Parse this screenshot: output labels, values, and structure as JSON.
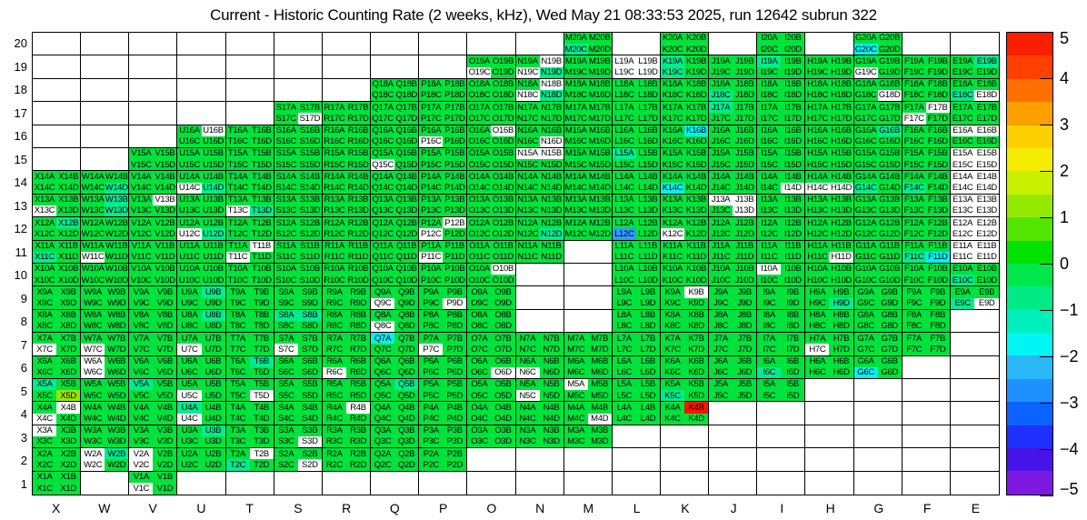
{
  "title": "Current - Historic Counting Rate (2 weeks, kHz), Wed May 21 08:33:53 2025, run 12642 subrun 322",
  "chart_data": {
    "type": "heatmap",
    "title": "Current - Historic Counting Rate (2 weeks, kHz), Wed May 21 08:33:53 2025, run 12642 subrun 322",
    "x_categories": [
      "X",
      "W",
      "V",
      "U",
      "T",
      "S",
      "R",
      "Q",
      "P",
      "O",
      "N",
      "M",
      "L",
      "K",
      "J",
      "I",
      "H",
      "G",
      "F",
      "E"
    ],
    "y_categories": [
      "20",
      "19",
      "18",
      "17",
      "16",
      "15",
      "14",
      "13",
      "12",
      "11",
      "10",
      "9",
      "8",
      "7",
      "6",
      "5",
      "4",
      "3",
      "2",
      "1"
    ],
    "quadrant_order": [
      "A",
      "B",
      "C",
      "D"
    ],
    "legend_position": "right",
    "colorbar_range": [
      -5,
      5
    ],
    "grid": "on",
    "color_classes": {
      "g": "#00e23c",
      "s": "#00ec8e",
      "c": "#00f2f2",
      "b": "#2f9bfb",
      "r": "#fb1400",
      "y": "#97e800",
      "w": "#ffffff"
    },
    "color_value_estimate_khz": {
      "g": 0.4,
      "s": -0.2,
      "c": -1.6,
      "b": -2.6,
      "r": 5.0,
      "y": 1.3,
      "w": null
    },
    "cells": {
      "M20": "ggsg",
      "K20": "gggg",
      "I20": "gggg",
      "G20": "ggcg",
      "O19": "ggwg",
      "N19": "gwws",
      "M19": "gggg",
      "L19": "wwww",
      "K19": "sgsg",
      "J19": "gggg",
      "I19": "sggg",
      "H19": "gggg",
      "G19": "ggwg",
      "F19": "gggg",
      "E19": "gsgg",
      "Q18": "gggg",
      "P18": "gggg",
      "O18": "gggg",
      "N18": "gwws",
      "M18": "gggg",
      "L18": "gggg",
      "K18": "gggg",
      "J18": "ggsg",
      "I18": "gggg",
      "H18": "gggg",
      "G18": "gggw",
      "F18": "gggg",
      "E18": "ggsw",
      "S17": "gggw",
      "R17": "gggg",
      "Q17": "gggg",
      "P17": "gggg",
      "O17": "gggg",
      "N17": "gggg",
      "M17": "gggg",
      "L17": "gggg",
      "K17": "gggg",
      "J17": "sggg",
      "I17": "gggg",
      "H17": "gggg",
      "G17": "gggg",
      "F17": "gwwg",
      "E17": "gggg",
      "U16": "gwgg",
      "T16": "gggg",
      "S16": "gggg",
      "R16": "gggg",
      "Q16": "gggg",
      "P16": "ggwg",
      "O16": "gwgg",
      "N16": "gggw",
      "M16": "gggg",
      "L16": "gggg",
      "K16": "gcgg",
      "J16": "gggg",
      "I16": "gggg",
      "H16": "gggg",
      "G16": "gsgg",
      "F16": "gggg",
      "E16": "wwgg",
      "V15": "gggg",
      "U15": "gggg",
      "T15": "gggg",
      "S15": "gggg",
      "R15": "gggg",
      "Q15": "ggwg",
      "P15": "gggg",
      "O15": "gggg",
      "N15": "wwgg",
      "M15": "gggg",
      "L15": "sggg",
      "K15": "gggg",
      "J15": "gggg",
      "I15": "gggg",
      "H15": "gggg",
      "G15": "gggg",
      "F15": "gggg",
      "E15": "wwww",
      "X14": "gggg",
      "W14": "gggs",
      "V14": "gggg",
      "U14": "ggws",
      "T14": "gggg",
      "S14": "gggg",
      "R14": "gggg",
      "Q14": "gggg",
      "P14": "gggg",
      "O14": "gggg",
      "N14": "gggg",
      "M14": "gggg",
      "L14": "gggg",
      "K14": "ggcg",
      "J14": "gggg",
      "I14": "gggw",
      "H14": "ggww",
      "G14": "ggsg",
      "F14": "ggsg",
      "E14": "wwww",
      "X13": "ggwg",
      "W13": "gsgs",
      "V13": "gwgg",
      "U13": "gggg",
      "T13": "ggws",
      "S13": "gggg",
      "R13": "gggg",
      "Q13": "gggg",
      "P13": "gggg",
      "O13": "gggg",
      "N13": "gggg",
      "M13": "gggg",
      "L13": "gggg",
      "K13": "gggg",
      "J13": "wwgw",
      "I13": "gggg",
      "H13": "gggg",
      "G13": "gggg",
      "F13": "gggg",
      "E13": "wwww",
      "X12": "gsgg",
      "W12": "gggg",
      "V12": "gggg",
      "U12": "ggws",
      "T12": "gggg",
      "S12": "gggg",
      "R12": "gggg",
      "Q12": "gggg",
      "P12": "gwwg",
      "O12": "gggg",
      "N12": "gggs",
      "M12": "gggg",
      "L12": "ggbg",
      "K12": "ggwg",
      "J12": "gggg",
      "I12": "gggg",
      "H12": "gggg",
      "G12": "gggg",
      "F12": "gggg",
      "E12": "wwww",
      "X11": "ggsg",
      "W11": "ggwg",
      "V11": "gggg",
      "U11": "gggg",
      "T11": "gwwg",
      "S11": "gggg",
      "R11": "gggg",
      "Q11": "gggg",
      "P11": "ggwg",
      "O11": "gggg",
      "N11": "gggg",
      "L11": "gggg",
      "K11": "gggg",
      "J11": "gggg",
      "I11": "gggg",
      "H11": "gggw",
      "G11": "gggg",
      "F11": "ggsc",
      "E11": "wwww",
      "X10": "gggg",
      "W10": "gggg",
      "V10": "gggg",
      "U10": "gggg",
      "T10": "gggg",
      "S10": "gggg",
      "R10": "gggg",
      "Q10": "gggg",
      "P10": "gggg",
      "O10": "gwgg",
      "L10": "gggg",
      "K10": "gggg",
      "J10": "gggg",
      "I10": "wggg",
      "H10": "gggg",
      "G10": "gggg",
      "F10": "gggg",
      "E10": "ggsg",
      "X9": "gggg",
      "W9": "gggg",
      "V9": "gggg",
      "U9": "gsgg",
      "T9": "gggg",
      "S9": "gggg",
      "R9": "gggg",
      "Q9": "ggwg",
      "P9": "gggw",
      "O9": "gggg",
      "L9": "gggg",
      "K9": "gwgg",
      "J9": "gggg",
      "I9": "gggg",
      "H9": "gggs",
      "G9": "gggg",
      "F9": "gggg",
      "E9": "ggsw",
      "X8": "gggg",
      "W8": "gggg",
      "V8": "gggg",
      "U8": "gsgg",
      "T8": "gggg",
      "S8": "ssgg",
      "R8": "gggg",
      "Q8": "ggwg",
      "P8": "gggg",
      "O8": "gggg",
      "L8": "gggg",
      "K8": "gggg",
      "J8": "gggg",
      "I8": "gggg",
      "H8": "gggg",
      "G8": "gggg",
      "F8": "gggg",
      "X7": "ggwg",
      "W7": "ggwg",
      "V7": "gggg",
      "U7": "ggwg",
      "T7": "gggg",
      "S7": "ggwg",
      "R7": "gggg",
      "Q7": "cggg",
      "P7": "ggwg",
      "O7": "gggg",
      "N7": "gggg",
      "M7": "gggg",
      "L7": "gggg",
      "K7": "gggg",
      "J7": "gggg",
      "I7": "gggg",
      "H7": "ggwg",
      "G7": "gggg",
      "F7": "gggg",
      "X6": "gggg",
      "W6": "wgwg",
      "V6": "gggg",
      "U6": "gggg",
      "T6": "gsgg",
      "S6": "gggg",
      "R6": "ggwg",
      "Q6": "gggg",
      "P6": "gggg",
      "O6": "gggw",
      "N6": "ggwg",
      "M6": "gggg",
      "L6": "gggg",
      "K6": "gggg",
      "J6": "gggg",
      "I6": "ggsg",
      "H6": "gggg",
      "G6": "ggcg",
      "X5": "sggy",
      "W5": "gggg",
      "V5": "sggg",
      "U5": "ggwg",
      "T5": "gggw",
      "S5": "gggg",
      "R5": "gggg",
      "Q5": "gsgg",
      "P5": "gggg",
      "O5": "gggg",
      "N5": "ggwg",
      "M5": "wggg",
      "L5": "gggg",
      "K5": "ggsg",
      "J5": "gggg",
      "I5": "gggg",
      "X4": "gwwg",
      "W4": "gggg",
      "V4": "gggg",
      "U4": "sgwg",
      "T4": "gggg",
      "S4": "gggg",
      "R4": "gwgg",
      "Q4": "gggg",
      "P4": "gggg",
      "O4": "gggg",
      "N4": "gggg",
      "M4": "gggw",
      "L4": "gggg",
      "K4": "grgg",
      "X3": "wggg",
      "W3": "gggg",
      "V3": "gggg",
      "U3": "gsgg",
      "T3": "gggg",
      "S3": "gggw",
      "R3": "gggg",
      "Q3": "gggg",
      "P3": "gggg",
      "O3": "gggg",
      "N3": "gggg",
      "M3": "gggg",
      "X2": "gggg",
      "W2": "wswg",
      "V2": "wgwg",
      "U2": "gggg",
      "T2": "gwsg",
      "S2": "gggw",
      "R2": "gggg",
      "Q2": "gggg",
      "P2": "gggg",
      "X1": "gggg",
      "V1": "ggwg"
    },
    "colorbar": {
      "tick_labels": [
        "5",
        "4",
        "3",
        "2",
        "1",
        "0",
        "−1",
        "−2",
        "−3",
        "−4",
        "−5"
      ],
      "bands_top_to_bottom": [
        "#fa1e00",
        "#ff4000",
        "#ff7000",
        "#ffa000",
        "#ffd000",
        "#f5ec00",
        "#c8f000",
        "#93ea00",
        "#53e500",
        "#00e300",
        "#00e74c",
        "#00eb85",
        "#00f0bc",
        "#00f5f5",
        "#29b8f5",
        "#1e90ff",
        "#0b62ff",
        "#1f30ff",
        "#4613e8",
        "#7d19e0"
      ]
    }
  }
}
